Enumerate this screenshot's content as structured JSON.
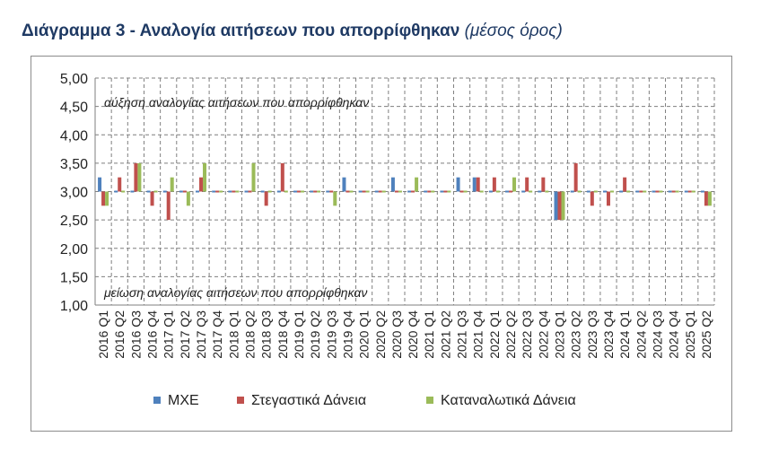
{
  "title": {
    "main": "Διάγραμμα 3 - Αναλογία αιτήσεων που απορρίφθηκαν",
    "sub": "(μέσος όρος)"
  },
  "chart_data": {
    "type": "bar",
    "baseline": 3.0,
    "ylim": [
      1.0,
      5.0
    ],
    "yticks": [
      "1,00",
      "1,50",
      "2,00",
      "2,50",
      "3,00",
      "3,50",
      "4,00",
      "4,50",
      "5,00"
    ],
    "grid": true,
    "legend_position": "bottom",
    "annotations": {
      "top": "αύξηση αναλογίας αιτήσεων που απορρίφθηκαν",
      "bottom": "μείωση αναλογίας αιτήσεων που απορρίφθηκαν"
    },
    "categories": [
      "2016 Q1",
      "2016 Q2",
      "2016 Q3",
      "2016 Q4",
      "2017 Q1",
      "2017 Q2",
      "2017 Q3",
      "2017 Q4",
      "2018 Q1",
      "2018 Q2",
      "2018 Q3",
      "2018 Q4",
      "2019 Q1",
      "2019 Q2",
      "2019 Q3",
      "2019 Q4",
      "2020 Q1",
      "2020 Q2",
      "2020 Q3",
      "2020 Q4",
      "2021 Q1",
      "2021 Q2",
      "2021 Q3",
      "2021 Q4",
      "2022 Q1",
      "2022 Q2",
      "2022 Q3",
      "2022 Q4",
      "2023 Q1",
      "2023 Q2",
      "2023 Q3",
      "2023 Q4",
      "2024 Q1",
      "2024 Q2",
      "2024 Q3",
      "2024 Q4",
      "2025 Q1",
      "2025 Q2"
    ],
    "series": [
      {
        "name": "ΜΧΕ",
        "color": "#4f81bd",
        "values": [
          3.25,
          3.0,
          3.0,
          3.0,
          3.0,
          3.0,
          3.0,
          3.0,
          3.0,
          3.0,
          3.0,
          3.0,
          3.0,
          3.0,
          3.0,
          3.25,
          3.0,
          3.0,
          3.25,
          3.0,
          3.0,
          3.0,
          3.25,
          3.25,
          3.0,
          3.0,
          3.0,
          3.0,
          2.5,
          3.0,
          3.0,
          3.0,
          3.0,
          3.0,
          3.0,
          3.0,
          3.0,
          3.0
        ]
      },
      {
        "name": "Στεγαστικά Δάνεια",
        "color": "#c0504d",
        "values": [
          2.75,
          3.25,
          3.5,
          2.75,
          2.5,
          3.0,
          3.25,
          3.0,
          3.0,
          3.0,
          2.75,
          3.5,
          3.0,
          3.0,
          3.0,
          3.0,
          3.0,
          3.0,
          3.0,
          3.0,
          3.0,
          3.0,
          3.0,
          3.25,
          3.25,
          3.0,
          3.25,
          3.25,
          2.5,
          3.5,
          2.75,
          2.75,
          3.25,
          3.0,
          3.0,
          3.0,
          3.0,
          2.75
        ]
      },
      {
        "name": "Καταναλωτικά Δάνεια",
        "color": "#9bbb59",
        "values": [
          2.75,
          3.0,
          3.5,
          3.0,
          3.25,
          2.75,
          3.5,
          3.0,
          3.0,
          3.5,
          3.0,
          3.0,
          3.0,
          3.0,
          2.75,
          3.0,
          3.0,
          3.0,
          3.0,
          3.25,
          3.0,
          3.0,
          3.0,
          3.0,
          3.0,
          3.25,
          3.0,
          3.0,
          2.5,
          3.0,
          3.0,
          3.0,
          3.0,
          3.0,
          3.0,
          3.0,
          3.0,
          2.75
        ]
      }
    ]
  }
}
